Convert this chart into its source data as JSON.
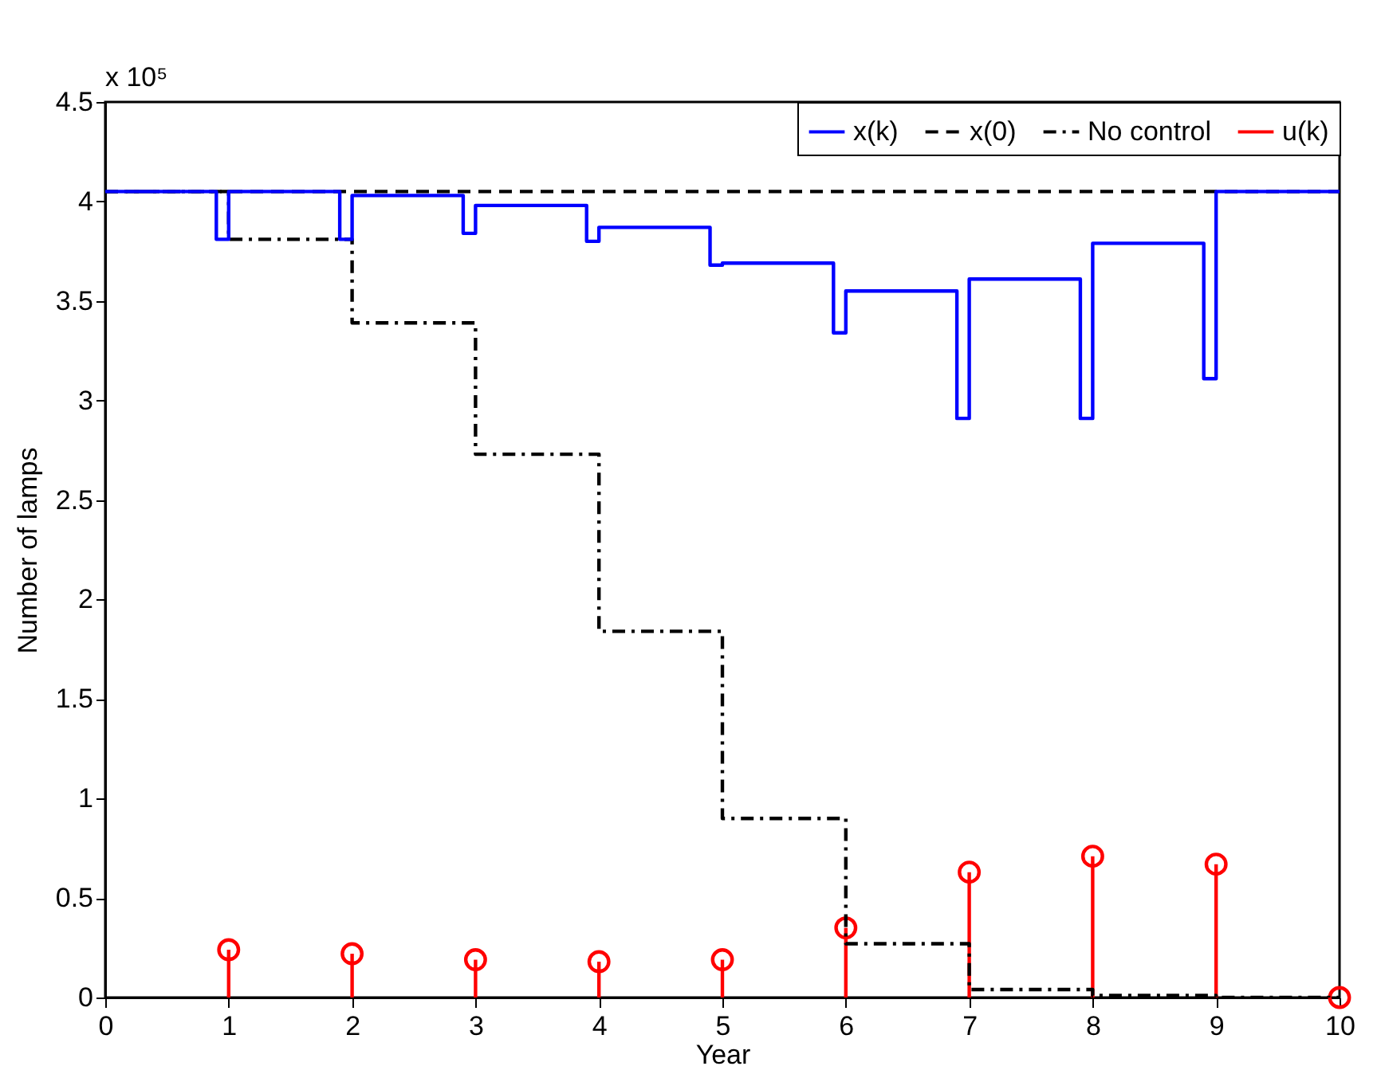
{
  "chart_data": {
    "type": "step",
    "xlabel": "Year",
    "ylabel": "Number of lamps",
    "annotations": [
      "x 10⁵"
    ],
    "xlim": [
      0,
      10
    ],
    "xticks": [
      0,
      1,
      2,
      3,
      4,
      5,
      6,
      7,
      8,
      9,
      10
    ],
    "ylim": [
      0,
      4.5
    ],
    "yticks": [
      0,
      0.5,
      1,
      1.5,
      2,
      2.5,
      3,
      3.5,
      4,
      4.5
    ],
    "grid": false,
    "legend": "top right",
    "series": [
      {
        "name": "x(k)",
        "color": "#0000ff",
        "line_style": "solid",
        "x": [
          0,
          0.9,
          1,
          1.9,
          2,
          2.9,
          3,
          3.9,
          4,
          4.9,
          5,
          5.9,
          6,
          6.9,
          7,
          7.9,
          8,
          8.9,
          9,
          10
        ],
        "values": [
          4.05,
          3.81,
          4.05,
          3.81,
          4.03,
          3.84,
          3.98,
          3.8,
          3.87,
          3.68,
          3.69,
          3.34,
          3.55,
          2.91,
          3.61,
          2.91,
          3.79,
          3.11,
          4.05,
          4.05
        ]
      },
      {
        "name": "x(0)",
        "type": "line",
        "color": "#000000",
        "line_style": "dashed",
        "x": [
          0,
          10
        ],
        "values": [
          4.05,
          4.05
        ]
      },
      {
        "name": "No control",
        "color": "#000000",
        "line_style": "dashdot",
        "x": [
          0,
          1,
          2,
          3,
          4,
          5,
          6,
          7,
          8,
          9,
          10
        ],
        "values": [
          4.05,
          3.81,
          3.39,
          2.73,
          1.84,
          0.9,
          0.27,
          0.04,
          0.01,
          0,
          0
        ]
      },
      {
        "name": "u(k)",
        "type": "lollipop",
        "color": "#ff0000",
        "marker": "circle",
        "x": [
          1,
          2,
          3,
          4,
          5,
          6,
          7,
          8,
          9,
          10
        ],
        "values": [
          0.24,
          0.22,
          0.19,
          0.18,
          0.19,
          0.35,
          0.63,
          0.71,
          0.67,
          0
        ]
      }
    ]
  }
}
